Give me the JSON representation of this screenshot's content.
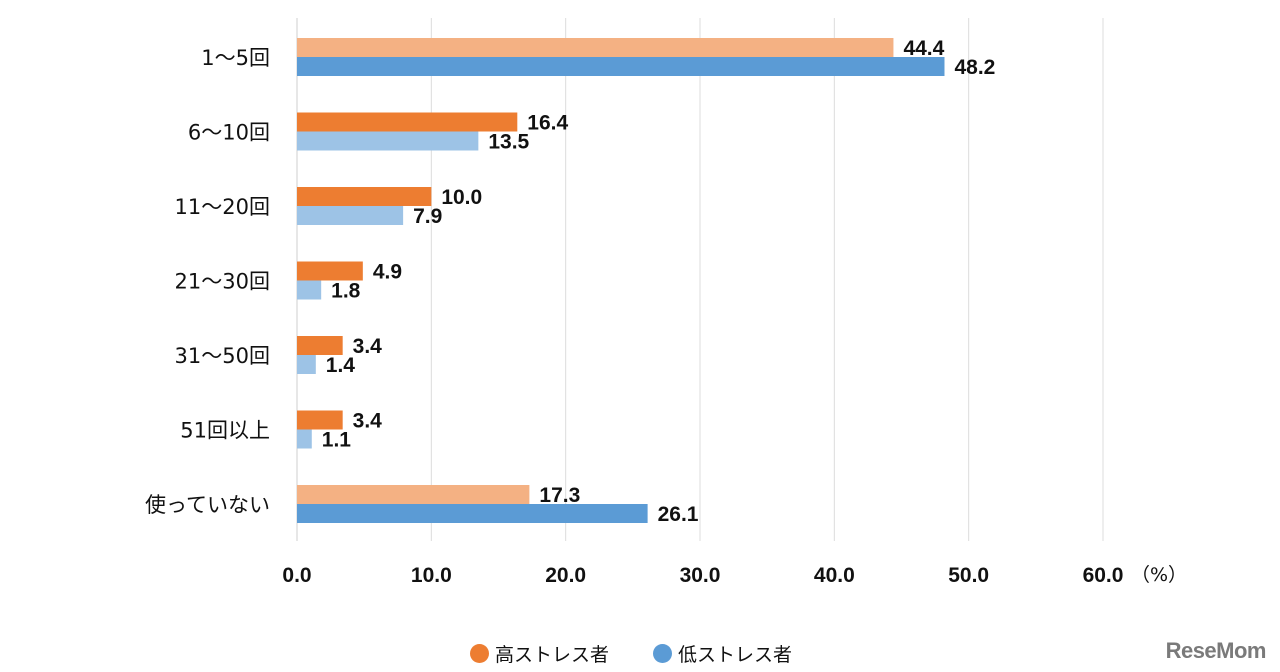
{
  "chart_data": {
    "type": "bar",
    "orientation": "horizontal",
    "title": "",
    "xlabel": "",
    "ylabel": "",
    "unit": "（%）",
    "xlim": [
      0,
      60
    ],
    "x_ticks": [
      "0.0",
      "10.0",
      "20.0",
      "30.0",
      "40.0",
      "50.0",
      "60.0"
    ],
    "grid": true,
    "legend_position": "bottom",
    "categories": [
      "1〜5回",
      "6〜10回",
      "11〜20回",
      "21〜30回",
      "31〜50回",
      "51回以上",
      "使っていない"
    ],
    "series": [
      {
        "name": "高ストレス者",
        "color": "#ED7D31",
        "highlight_color": "#F4B183",
        "values": [
          44.4,
          16.4,
          10.0,
          4.9,
          3.4,
          3.4,
          17.3
        ],
        "labels": [
          "44.4",
          "16.4",
          "10.0",
          "4.9",
          "3.4",
          "3.4",
          "17.3"
        ]
      },
      {
        "name": "低ストレス者",
        "color": "#5B9BD5",
        "highlight_color": "#9DC3E6",
        "values": [
          48.2,
          13.5,
          7.9,
          1.8,
          1.4,
          1.1,
          26.1
        ],
        "labels": [
          "48.2",
          "13.5",
          "7.9",
          "1.8",
          "1.4",
          "1.1",
          "26.1"
        ]
      }
    ],
    "color_variant_by_category": [
      "alt",
      "main",
      "main",
      "main",
      "main",
      "main",
      "alt"
    ]
  },
  "legend": {
    "items": [
      {
        "label": "高ストレス者",
        "color": "#ED7D31"
      },
      {
        "label": "低ストレス者",
        "color": "#5B9BD5"
      }
    ]
  },
  "watermark": {
    "text": "ReseMom"
  }
}
